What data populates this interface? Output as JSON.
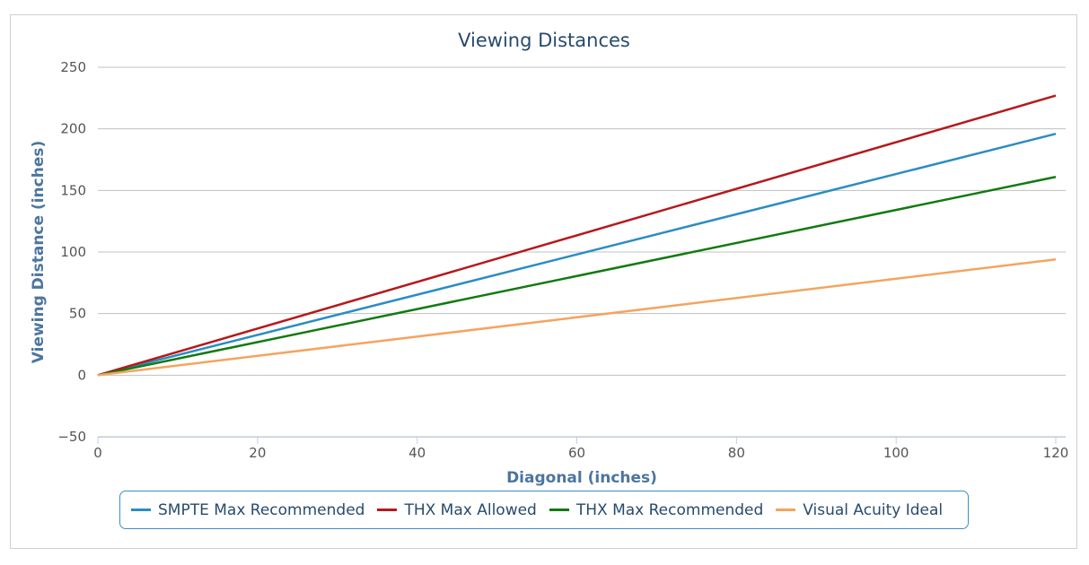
{
  "chart_data": {
    "type": "line",
    "title": "Viewing Distances",
    "xlabel": "Diagonal (inches)",
    "ylabel": "Viewing Distance (inches)",
    "xlim": [
      0,
      120
    ],
    "ylim": [
      -50,
      250
    ],
    "xticks": [
      0,
      20,
      40,
      60,
      80,
      100,
      120
    ],
    "yticks": [
      -50,
      0,
      50,
      100,
      150,
      200,
      250
    ],
    "xtick_labels": [
      "0",
      "20",
      "40",
      "60",
      "80",
      "100",
      "120"
    ],
    "ytick_labels": [
      "−50",
      "0",
      "50",
      "100",
      "150",
      "200",
      "250"
    ],
    "grid": true,
    "legend_position": "bottom",
    "series": [
      {
        "name": "SMPTE Max Recommended",
        "color": "#2b8cc4",
        "x": [
          0,
          120
        ],
        "y": [
          0,
          196
        ]
      },
      {
        "name": "THX Max Allowed",
        "color": "#b5191c",
        "x": [
          0,
          120
        ],
        "y": [
          0,
          227
        ]
      },
      {
        "name": "THX Max Recommended",
        "color": "#117a11",
        "x": [
          0,
          120
        ],
        "y": [
          0,
          161
        ]
      },
      {
        "name": "Visual Acuity Ideal",
        "color": "#f4a460",
        "x": [
          0,
          120
        ],
        "y": [
          0,
          94
        ]
      }
    ]
  }
}
